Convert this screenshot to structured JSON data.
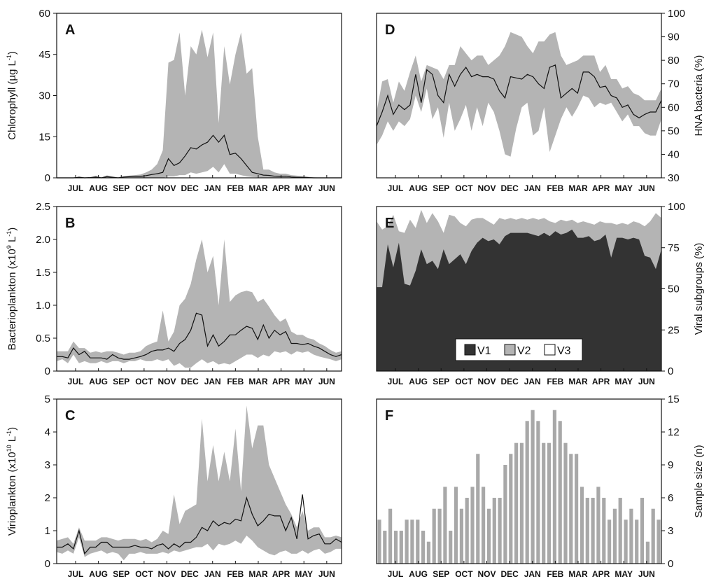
{
  "months": [
    "JUL",
    "AUG",
    "SEP",
    "OCT",
    "NOV",
    "DEC",
    "JAN",
    "FEB",
    "MAR",
    "APR",
    "MAY",
    "JUN"
  ],
  "colors": {
    "band": "#b4b4b4",
    "line": "#111111",
    "v1": "#333333",
    "v2": "#b4b4b4",
    "v3": "#ffffff",
    "bar": "#a8a8a8"
  },
  "chart_data": [
    {
      "id": "A",
      "type": "line",
      "label": "A",
      "ylabel_parts": [
        "Chlorophyll (µg L",
        "-1",
        ")"
      ],
      "ylim": [
        0,
        60
      ],
      "yticks": [
        0,
        15,
        30,
        45,
        60
      ],
      "axis": "left",
      "x": [
        0,
        1,
        2,
        3,
        4,
        5,
        6,
        7,
        8,
        9,
        10,
        11,
        12,
        13,
        14,
        15,
        16,
        17,
        18,
        19,
        20,
        21,
        22,
        23,
        24,
        25,
        26,
        27,
        28,
        29,
        30,
        31,
        32,
        33,
        34,
        35,
        36,
        37,
        38,
        39,
        40,
        41,
        42,
        43,
        44,
        45,
        46,
        47,
        48,
        49,
        50,
        51
      ],
      "mean": [
        0,
        0,
        0,
        0,
        0.2,
        0,
        0.1,
        0.3,
        0,
        0.4,
        0.2,
        0,
        0.3,
        0.4,
        0.5,
        0.5,
        0.8,
        1.2,
        1.5,
        2,
        7,
        4.5,
        5.5,
        8,
        11,
        10.5,
        12,
        13,
        15.5,
        13,
        15.5,
        8.5,
        9,
        7,
        4.5,
        2,
        1.5,
        1,
        0.9,
        0.6,
        0.5,
        0.6,
        0.3,
        0.2,
        0.2,
        0.1,
        0,
        0,
        0,
        0,
        0,
        0
      ],
      "low": [
        0,
        0,
        0,
        0,
        0,
        0,
        0,
        0,
        0,
        0,
        0,
        0,
        0,
        0,
        0,
        0,
        0,
        0,
        0,
        0,
        0.5,
        0.5,
        1,
        1,
        2,
        1.5,
        2,
        2.5,
        4,
        2,
        5,
        1.5,
        1.5,
        1,
        0.5,
        0.3,
        0.2,
        0.1,
        0.1,
        0.1,
        0,
        0,
        0,
        0,
        0,
        0,
        0,
        0,
        0,
        0,
        0,
        0
      ],
      "high": [
        0,
        0,
        0,
        0,
        0.5,
        0.2,
        0.2,
        0.8,
        0.2,
        0.9,
        0.5,
        0.2,
        0.6,
        0.8,
        1,
        1.2,
        2,
        3,
        5,
        10,
        42,
        43,
        53,
        30,
        48,
        45,
        54,
        44,
        53,
        20,
        48,
        34,
        45,
        53,
        38,
        40,
        15,
        3,
        3,
        2,
        1.5,
        1.5,
        1,
        0.8,
        0.6,
        0.4,
        0.2,
        0.1,
        0.1,
        0.1,
        0,
        0
      ]
    },
    {
      "id": "B",
      "type": "line",
      "label": "B",
      "ylabel_parts": [
        "Bacterioplankton (x10",
        "9",
        " L",
        "-1",
        ")"
      ],
      "ylim": [
        0,
        2.5
      ],
      "yticks": [
        0,
        0.5,
        1.0,
        1.5,
        2.0,
        2.5
      ],
      "ytick_labels": [
        "0",
        "0.5",
        "1.0",
        "1.5",
        "2.0",
        "2.5"
      ],
      "axis": "left",
      "x": [
        0,
        1,
        2,
        3,
        4,
        5,
        6,
        7,
        8,
        9,
        10,
        11,
        12,
        13,
        14,
        15,
        16,
        17,
        18,
        19,
        20,
        21,
        22,
        23,
        24,
        25,
        26,
        27,
        28,
        29,
        30,
        31,
        32,
        33,
        34,
        35,
        36,
        37,
        38,
        39,
        40,
        41,
        42,
        43,
        44,
        45,
        46,
        47,
        48,
        49,
        50,
        51
      ],
      "mean": [
        0.22,
        0.22,
        0.2,
        0.35,
        0.25,
        0.3,
        0.2,
        0.2,
        0.2,
        0.18,
        0.25,
        0.2,
        0.18,
        0.18,
        0.2,
        0.22,
        0.25,
        0.3,
        0.32,
        0.32,
        0.35,
        0.3,
        0.42,
        0.48,
        0.62,
        0.88,
        0.85,
        0.38,
        0.55,
        0.38,
        0.45,
        0.55,
        0.55,
        0.62,
        0.68,
        0.65,
        0.48,
        0.7,
        0.5,
        0.62,
        0.55,
        0.6,
        0.42,
        0.42,
        0.4,
        0.42,
        0.38,
        0.35,
        0.3,
        0.25,
        0.22,
        0.25
      ],
      "low": [
        0.15,
        0.18,
        0.12,
        0.25,
        0.12,
        0.15,
        0.12,
        0.12,
        0.15,
        0.12,
        0.15,
        0.15,
        0.12,
        0.15,
        0.15,
        0.18,
        0.15,
        0.15,
        0.18,
        0.15,
        0.18,
        0.08,
        0.12,
        0.05,
        0.05,
        0.12,
        0.18,
        0.12,
        0.15,
        0.1,
        0.12,
        0.1,
        0.15,
        0.2,
        0.25,
        0.25,
        0.2,
        0.25,
        0.22,
        0.3,
        0.28,
        0.3,
        0.25,
        0.3,
        0.28,
        0.3,
        0.25,
        0.22,
        0.2,
        0.18,
        0.15,
        0.18
      ],
      "high": [
        0.3,
        0.3,
        0.3,
        0.45,
        0.35,
        0.35,
        0.28,
        0.3,
        0.28,
        0.3,
        0.3,
        0.28,
        0.25,
        0.28,
        0.28,
        0.3,
        0.38,
        0.42,
        0.45,
        0.92,
        0.45,
        0.6,
        1.0,
        1.1,
        1.32,
        1.7,
        2.0,
        1.5,
        1.75,
        1.0,
        2.0,
        1.05,
        1.15,
        1.2,
        1.22,
        1.2,
        1.05,
        1.1,
        0.98,
        0.85,
        0.75,
        0.8,
        0.6,
        0.55,
        0.55,
        0.5,
        0.48,
        0.42,
        0.38,
        0.32,
        0.28,
        0.3
      ]
    },
    {
      "id": "C",
      "type": "line",
      "label": "C",
      "ylabel_parts": [
        "Virioplankton (x10",
        "10",
        " L",
        "-1",
        ")"
      ],
      "ylim": [
        0,
        5
      ],
      "yticks": [
        0,
        1,
        2,
        3,
        4,
        5
      ],
      "axis": "left",
      "x": [
        0,
        1,
        2,
        3,
        4,
        5,
        6,
        7,
        8,
        9,
        10,
        11,
        12,
        13,
        14,
        15,
        16,
        17,
        18,
        19,
        20,
        21,
        22,
        23,
        24,
        25,
        26,
        27,
        28,
        29,
        30,
        31,
        32,
        33,
        34,
        35,
        36,
        37,
        38,
        39,
        40,
        41,
        42,
        43,
        44,
        45,
        46,
        47,
        48,
        49,
        50,
        51
      ],
      "mean": [
        0.5,
        0.5,
        0.6,
        0.45,
        1.0,
        0.3,
        0.5,
        0.5,
        0.65,
        0.65,
        0.5,
        0.5,
        0.5,
        0.5,
        0.55,
        0.5,
        0.5,
        0.45,
        0.55,
        0.6,
        0.45,
        0.6,
        0.5,
        0.65,
        0.65,
        0.8,
        1.1,
        1.0,
        1.3,
        1.15,
        1.25,
        1.2,
        1.35,
        1.3,
        2.0,
        1.5,
        1.15,
        1.3,
        1.5,
        1.45,
        1.45,
        1.0,
        1.4,
        0.75,
        2.1,
        0.75,
        0.85,
        0.9,
        0.6,
        0.6,
        0.75,
        0.65
      ],
      "low": [
        0.35,
        0.3,
        0.4,
        0.3,
        0.8,
        0.2,
        0.3,
        0.35,
        0.4,
        0.3,
        0.35,
        0.3,
        0.1,
        0.3,
        0.3,
        0.35,
        0.3,
        0.3,
        0.3,
        0.35,
        0.3,
        0.4,
        0.35,
        0.4,
        0.45,
        0.5,
        0.5,
        0.6,
        0.4,
        0.6,
        0.55,
        0.6,
        0.7,
        0.6,
        0.85,
        0.7,
        0.5,
        0.4,
        0.3,
        0.25,
        0.35,
        0.4,
        0.3,
        0.3,
        0.4,
        0.3,
        0.4,
        0.45,
        0.3,
        0.35,
        0.45,
        0.45
      ],
      "high": [
        0.7,
        0.75,
        0.8,
        0.6,
        1.1,
        0.7,
        0.7,
        0.7,
        0.8,
        0.8,
        0.75,
        0.7,
        0.75,
        0.75,
        0.75,
        0.7,
        0.75,
        0.65,
        0.75,
        1.0,
        0.9,
        2.1,
        1.2,
        1.6,
        1.7,
        1.8,
        4.4,
        2.5,
        3.6,
        2.5,
        3.4,
        2.5,
        4.1,
        2.2,
        4.8,
        3.5,
        4.2,
        4.2,
        3.0,
        2.6,
        2.2,
        1.8,
        1.5,
        1.1,
        1.6,
        1.0,
        1.1,
        1.1,
        0.8,
        0.8,
        0.85,
        0.8
      ]
    },
    {
      "id": "D",
      "type": "line",
      "label": "D",
      "ylabel_parts": [
        "HNA bacteria (%)"
      ],
      "ylim": [
        30,
        100
      ],
      "yticks": [
        30,
        40,
        50,
        60,
        70,
        80,
        90,
        100
      ],
      "axis": "right",
      "x": [
        0,
        1,
        2,
        3,
        4,
        5,
        6,
        7,
        8,
        9,
        10,
        11,
        12,
        13,
        14,
        15,
        16,
        17,
        18,
        19,
        20,
        21,
        22,
        23,
        24,
        25,
        26,
        27,
        28,
        29,
        30,
        31,
        32,
        33,
        34,
        35,
        36,
        37,
        38,
        39,
        40,
        41,
        42,
        43,
        44,
        45,
        46,
        47,
        48,
        49,
        50,
        51
      ],
      "mean": [
        52,
        58,
        65,
        57,
        61,
        59,
        61,
        74,
        62,
        76,
        74,
        65,
        62,
        74,
        69,
        74,
        77,
        73,
        74,
        73,
        73,
        72,
        67,
        64,
        73,
        72.5,
        72,
        74,
        73,
        70,
        68,
        77,
        78,
        64,
        66,
        68,
        66,
        75,
        75,
        73,
        68.5,
        69,
        65,
        64,
        60,
        61,
        57,
        55.5,
        57,
        58,
        58,
        63
      ],
      "low": [
        44,
        48,
        54,
        50,
        54,
        52,
        55,
        65,
        58,
        68,
        55,
        60,
        47,
        62,
        50,
        55,
        61,
        50,
        60,
        52,
        62,
        58,
        50,
        40,
        39,
        51,
        60,
        62,
        48,
        50,
        60,
        41,
        48,
        55,
        60,
        56,
        60,
        65,
        64,
        60,
        62,
        61,
        62,
        58,
        54,
        57,
        52,
        52,
        49,
        48,
        48,
        55
      ],
      "high": [
        58,
        71,
        72,
        62,
        71,
        67,
        75,
        82,
        71,
        78,
        77,
        76,
        72,
        78,
        78,
        86,
        83,
        80,
        82,
        82,
        78,
        80,
        82,
        86,
        92,
        91,
        90,
        86,
        83,
        88,
        88,
        91,
        92,
        82,
        78,
        79,
        80,
        82,
        82,
        82,
        75,
        78,
        72,
        72,
        68,
        69,
        66,
        65,
        63,
        63,
        63,
        68
      ]
    },
    {
      "id": "E",
      "type": "area",
      "label": "E",
      "ylabel_parts": [
        "Viral subgroups (%)"
      ],
      "ylim": [
        0,
        100
      ],
      "yticks": [
        0,
        25,
        50,
        75,
        100
      ],
      "axis": "right",
      "x": [
        0,
        1,
        2,
        3,
        4,
        5,
        6,
        7,
        8,
        9,
        10,
        11,
        12,
        13,
        14,
        15,
        16,
        17,
        18,
        19,
        20,
        21,
        22,
        23,
        24,
        25,
        26,
        27,
        28,
        29,
        30,
        31,
        32,
        33,
        34,
        35,
        36,
        37,
        38,
        39,
        40,
        41,
        42,
        43,
        44,
        45,
        46,
        47,
        48,
        49,
        50,
        51
      ],
      "v1": [
        51,
        51,
        77,
        63,
        78,
        53,
        52,
        61,
        74,
        65,
        67,
        62,
        74,
        65,
        68,
        71,
        65,
        73,
        78,
        81,
        79,
        80,
        77,
        82,
        84,
        84,
        84,
        84,
        83,
        82,
        84,
        82,
        85,
        83,
        84,
        86,
        81,
        81,
        82,
        79,
        80,
        83,
        69,
        81,
        81,
        80,
        81,
        80,
        70,
        69,
        62,
        74
      ],
      "v1v2": [
        91,
        86,
        88,
        95,
        85,
        84,
        92,
        87,
        98,
        90,
        96,
        91,
        84,
        95,
        94,
        90,
        88,
        92,
        93,
        93,
        91,
        89,
        93,
        92,
        93,
        92,
        93,
        92,
        93,
        92,
        93,
        91,
        90,
        92,
        91,
        92,
        90,
        91,
        90,
        89,
        91,
        90,
        90,
        89,
        90,
        89,
        91,
        90,
        88,
        91,
        96,
        93
      ],
      "legend": [
        "V1",
        "V2",
        "V3"
      ]
    },
    {
      "id": "F",
      "type": "bar",
      "label": "F",
      "ylabel_parts": [
        "Sample size (n)"
      ],
      "ylim": [
        0,
        15
      ],
      "yticks": [
        0,
        3,
        6,
        9,
        12,
        15
      ],
      "axis": "right",
      "x": [
        0,
        1,
        2,
        3,
        4,
        5,
        6,
        7,
        8,
        9,
        10,
        11,
        12,
        13,
        14,
        15,
        16,
        17,
        18,
        19,
        20,
        21,
        22,
        23,
        24,
        25,
        26,
        27,
        28,
        29,
        30,
        31,
        32,
        33,
        34,
        35,
        36,
        37,
        38,
        39,
        40,
        41,
        42,
        43,
        44,
        45,
        46,
        47,
        48,
        49,
        50,
        51
      ],
      "values": [
        4,
        3,
        5,
        3,
        3,
        4,
        4,
        4,
        3,
        2,
        5,
        5,
        7,
        3,
        7,
        5,
        6,
        7,
        10,
        7,
        5,
        6,
        6,
        9,
        10,
        11,
        11,
        13,
        14,
        13,
        11,
        11,
        14,
        13,
        11,
        10,
        10,
        7,
        6,
        6,
        7,
        6,
        4,
        5,
        6,
        4,
        5,
        4,
        6,
        2,
        5,
        4
      ]
    }
  ]
}
